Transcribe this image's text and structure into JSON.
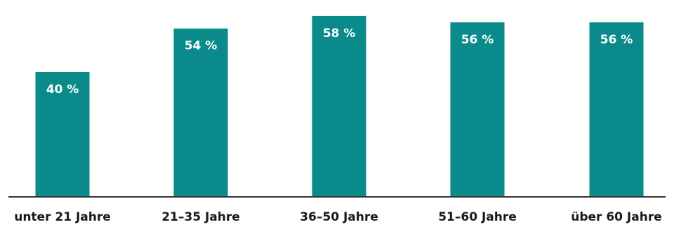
{
  "chart_data": {
    "type": "bar",
    "categories": [
      "unter 21 Jahre",
      "21–35 Jahre",
      "36–50 Jahre",
      "51–60 Jahre",
      "über 60 Jahre"
    ],
    "values": [
      40,
      54,
      58,
      56,
      56
    ],
    "value_labels": [
      "40 %",
      "54 %",
      "58 %",
      "56 %",
      "56 %"
    ],
    "title": "",
    "xlabel": "",
    "ylabel": "",
    "ylim": [
      0,
      60
    ],
    "grid": false,
    "legend": "none",
    "bar_color": "#0a8a8a"
  }
}
